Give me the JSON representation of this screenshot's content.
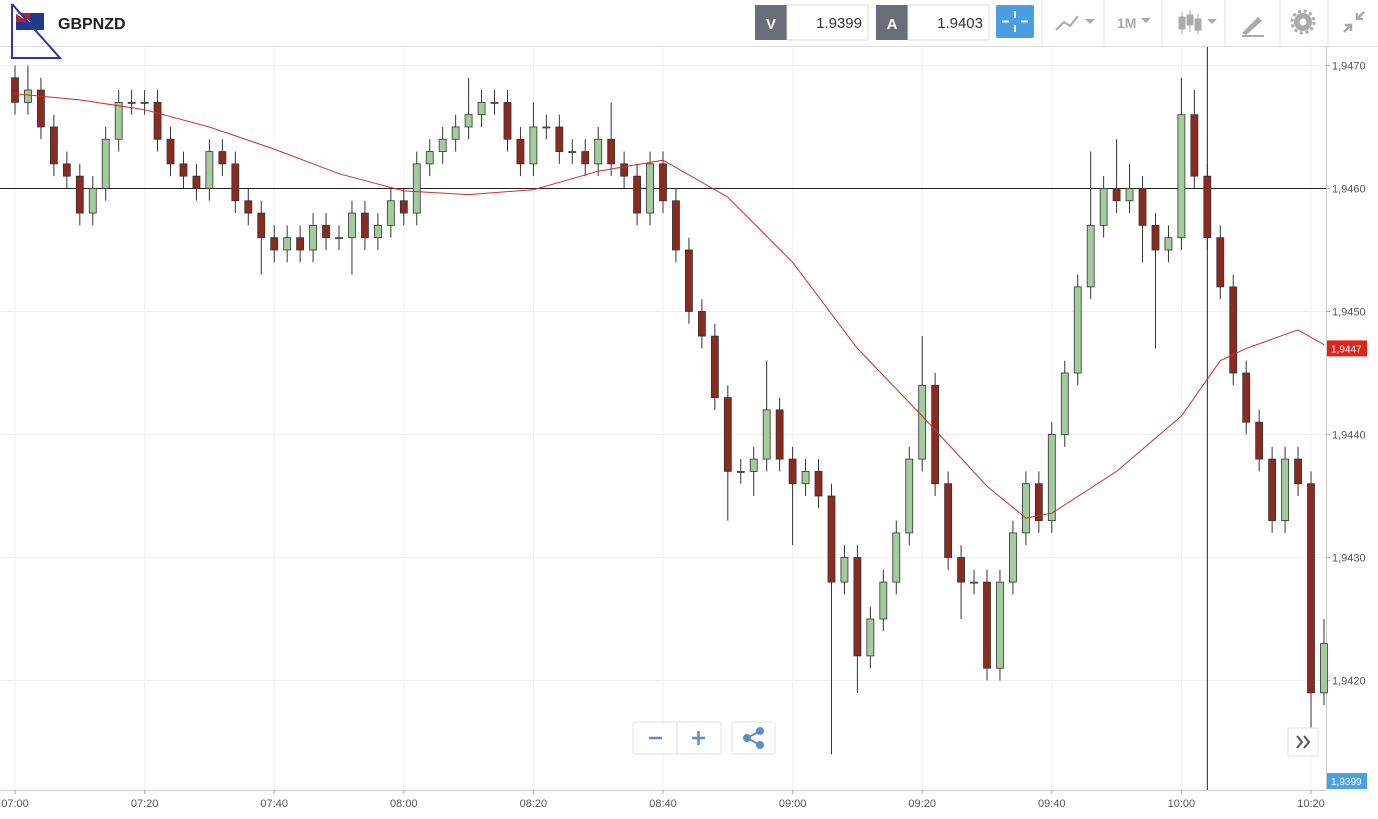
{
  "header": {
    "symbol": "GBPNZD",
    "bid_tag": "V",
    "bid": "1.9399",
    "ask_tag": "A",
    "ask": "1.9403",
    "timeframe": "1M"
  },
  "chart_data": {
    "type": "candlestick",
    "x": [
      "07:00",
      "07:02",
      "07:04",
      "07:06",
      "07:08",
      "07:10",
      "07:12",
      "07:14",
      "07:16",
      "07:18",
      "07:20",
      "07:22",
      "07:24",
      "07:26",
      "07:28",
      "07:30",
      "07:32",
      "07:34",
      "07:36",
      "07:38",
      "07:40",
      "07:42",
      "07:44",
      "07:46",
      "07:48",
      "07:50",
      "07:52",
      "07:54",
      "07:56",
      "07:58",
      "08:00",
      "08:02",
      "08:04",
      "08:06",
      "08:08",
      "08:10",
      "08:12",
      "08:14",
      "08:16",
      "08:18",
      "08:20",
      "08:22",
      "08:24",
      "08:26",
      "08:28",
      "08:30",
      "08:32",
      "08:34",
      "08:36",
      "08:38",
      "08:40",
      "08:42",
      "08:44",
      "08:46",
      "08:48",
      "08:50",
      "08:52",
      "08:54",
      "08:56",
      "08:58",
      "09:00",
      "09:02",
      "09:04",
      "09:06",
      "09:08",
      "09:10",
      "09:12",
      "09:14",
      "09:16",
      "09:18",
      "09:20",
      "09:22",
      "09:24",
      "09:26",
      "09:28",
      "09:30",
      "09:32",
      "09:34",
      "09:36",
      "09:38",
      "09:40",
      "09:42",
      "09:44",
      "09:46",
      "09:48",
      "09:50",
      "09:52",
      "09:54",
      "09:56",
      "09:58",
      "10:00",
      "10:02",
      "10:04",
      "10:06",
      "10:08",
      "10:10",
      "10:12",
      "10:14",
      "10:16",
      "10:18",
      "10:20",
      "10:22"
    ],
    "open": [
      1.9469,
      1.9467,
      1.9468,
      1.9465,
      1.9462,
      1.9461,
      1.9458,
      1.946,
      1.9464,
      1.9467,
      1.9467,
      1.9467,
      1.9464,
      1.9462,
      1.9461,
      1.946,
      1.9463,
      1.9462,
      1.9459,
      1.9458,
      1.9456,
      1.9455,
      1.9456,
      1.9455,
      1.9457,
      1.9456,
      1.9456,
      1.9458,
      1.9456,
      1.9457,
      1.9459,
      1.9458,
      1.9462,
      1.9463,
      1.9464,
      1.9465,
      1.9466,
      1.9467,
      1.9467,
      1.9464,
      1.9462,
      1.9465,
      1.9465,
      1.9463,
      1.9463,
      1.9462,
      1.9464,
      1.9462,
      1.9461,
      1.9458,
      1.9462,
      1.9459,
      1.9455,
      1.945,
      1.9448,
      1.9443,
      1.9437,
      1.9437,
      1.9438,
      1.9442,
      1.9438,
      1.9436,
      1.9437,
      1.9435,
      1.9428,
      1.943,
      1.9422,
      1.9425,
      1.9428,
      1.9432,
      1.9438,
      1.9444,
      1.9436,
      1.943,
      1.9428,
      1.9428,
      1.9421,
      1.9428,
      1.9432,
      1.9436,
      1.9433,
      1.944,
      1.9445,
      1.9452,
      1.9457,
      1.946,
      1.9459,
      1.946,
      1.9457,
      1.9455,
      1.9456,
      1.9466,
      1.9461,
      1.9456,
      1.9452,
      1.9445,
      1.9441,
      1.9438,
      1.9433,
      1.9438,
      1.9436,
      1.9419
    ],
    "high": [
      1.947,
      1.947,
      1.9469,
      1.9466,
      1.9463,
      1.9462,
      1.9461,
      1.9465,
      1.9468,
      1.9468,
      1.9468,
      1.9468,
      1.9465,
      1.9463,
      1.9462,
      1.9464,
      1.9464,
      1.9463,
      1.946,
      1.9459,
      1.9457,
      1.9457,
      1.9457,
      1.9458,
      1.9458,
      1.9457,
      1.9459,
      1.9459,
      1.9458,
      1.946,
      1.946,
      1.9463,
      1.9464,
      1.9465,
      1.9466,
      1.9469,
      1.9468,
      1.9468,
      1.9468,
      1.9465,
      1.9467,
      1.9466,
      1.9466,
      1.9464,
      1.9464,
      1.9465,
      1.9467,
      1.9463,
      1.9462,
      1.9463,
      1.9463,
      1.946,
      1.9456,
      1.9451,
      1.9449,
      1.9444,
      1.9438,
      1.9439,
      1.9446,
      1.9443,
      1.9439,
      1.9438,
      1.9438,
      1.9436,
      1.9431,
      1.9431,
      1.9426,
      1.9429,
      1.9433,
      1.9439,
      1.9448,
      1.9445,
      1.9437,
      1.9431,
      1.9429,
      1.9429,
      1.9429,
      1.9433,
      1.9437,
      1.9437,
      1.9441,
      1.9446,
      1.9453,
      1.9463,
      1.9461,
      1.9464,
      1.9462,
      1.9461,
      1.9458,
      1.9457,
      1.9469,
      1.9468,
      1.9462,
      1.9457,
      1.9453,
      1.9446,
      1.9442,
      1.9439,
      1.9439,
      1.9439,
      1.9437,
      1.9425
    ],
    "low": [
      1.9466,
      1.9466,
      1.9464,
      1.9461,
      1.946,
      1.9457,
      1.9457,
      1.9459,
      1.9463,
      1.9466,
      1.9466,
      1.9463,
      1.9461,
      1.946,
      1.9459,
      1.9459,
      1.9461,
      1.9458,
      1.9457,
      1.9453,
      1.9454,
      1.9454,
      1.9454,
      1.9454,
      1.9455,
      1.9455,
      1.9453,
      1.9455,
      1.9455,
      1.9456,
      1.9457,
      1.9457,
      1.9461,
      1.9462,
      1.9463,
      1.9464,
      1.9465,
      1.9466,
      1.9463,
      1.9461,
      1.9461,
      1.9464,
      1.9462,
      1.9462,
      1.9461,
      1.9461,
      1.9461,
      1.946,
      1.9457,
      1.9457,
      1.9458,
      1.9454,
      1.9449,
      1.9447,
      1.9442,
      1.9433,
      1.9436,
      1.9435,
      1.9437,
      1.9437,
      1.9431,
      1.9435,
      1.9434,
      1.9414,
      1.9427,
      1.9419,
      1.9421,
      1.9424,
      1.9427,
      1.9431,
      1.9437,
      1.9435,
      1.9429,
      1.9425,
      1.9427,
      1.942,
      1.942,
      1.9427,
      1.9431,
      1.9432,
      1.9432,
      1.9439,
      1.9444,
      1.9451,
      1.9456,
      1.9458,
      1.9458,
      1.9454,
      1.9447,
      1.9454,
      1.9455,
      1.946,
      1.9455,
      1.9451,
      1.9444,
      1.944,
      1.9437,
      1.9432,
      1.9432,
      1.9435,
      1.9416,
      1.9418
    ],
    "close": [
      1.9467,
      1.9468,
      1.9465,
      1.9462,
      1.9461,
      1.9458,
      1.946,
      1.9464,
      1.9467,
      1.9467,
      1.9467,
      1.9464,
      1.9462,
      1.9461,
      1.946,
      1.9463,
      1.9462,
      1.9459,
      1.9458,
      1.9456,
      1.9455,
      1.9456,
      1.9455,
      1.9457,
      1.9456,
      1.9456,
      1.9458,
      1.9456,
      1.9457,
      1.9459,
      1.9458,
      1.9462,
      1.9463,
      1.9464,
      1.9465,
      1.9466,
      1.9467,
      1.9467,
      1.9464,
      1.9462,
      1.9465,
      1.9465,
      1.9463,
      1.9463,
      1.9462,
      1.9464,
      1.9462,
      1.9461,
      1.9458,
      1.9462,
      1.9459,
      1.9455,
      1.945,
      1.9448,
      1.9443,
      1.9437,
      1.9437,
      1.9438,
      1.9442,
      1.9438,
      1.9436,
      1.9437,
      1.9435,
      1.9428,
      1.943,
      1.9422,
      1.9425,
      1.9428,
      1.9432,
      1.9438,
      1.9444,
      1.9436,
      1.943,
      1.9428,
      1.9428,
      1.9421,
      1.9428,
      1.9432,
      1.9436,
      1.9433,
      1.944,
      1.9445,
      1.9452,
      1.9457,
      1.946,
      1.9459,
      1.946,
      1.9457,
      1.9455,
      1.9456,
      1.9466,
      1.9461,
      1.9456,
      1.9452,
      1.9445,
      1.9441,
      1.9438,
      1.9433,
      1.9438,
      1.9436,
      1.9419,
      1.9423
    ],
    "up_color": "#a3cc9c",
    "down_color": "#8b2b20",
    "moving_average": {
      "color": "#d0302a",
      "x": [
        "07:00",
        "07:10",
        "07:20",
        "07:30",
        "07:40",
        "07:50",
        "08:00",
        "08:10",
        "08:20",
        "08:30",
        "08:40",
        "08:50",
        "09:00",
        "09:10",
        "09:20",
        "09:30",
        "09:36",
        "09:40",
        "09:50",
        "10:00",
        "10:06",
        "10:10",
        "10:18",
        "10:22"
      ],
      "values": [
        1.94677,
        1.94672,
        1.94664,
        1.9465,
        1.94632,
        1.94612,
        1.94598,
        1.94595,
        1.94599,
        1.94614,
        1.94623,
        1.94593,
        1.9454,
        1.9447,
        1.94415,
        1.94358,
        1.94332,
        1.94336,
        1.9437,
        1.94415,
        1.9446,
        1.9447,
        1.94485,
        1.94473
      ]
    },
    "last_price": {
      "value": 1.9447,
      "label": "1,9447"
    },
    "bid_marker": "1,9399",
    "hline": 1.946,
    "vline": "10:04",
    "ylim": [
      1.94111,
      1.94715
    ],
    "yticks": [
      {
        "value": 1.942,
        "label": "1,9420"
      },
      {
        "value": 1.943,
        "label": "1,9430"
      },
      {
        "value": 1.944,
        "label": "1,9440"
      },
      {
        "value": 1.945,
        "label": "1,9450"
      },
      {
        "value": 1.946,
        "label": "1,9460"
      },
      {
        "value": 1.947,
        "label": "1,9470"
      }
    ],
    "xticks": [
      "07:00",
      "07:20",
      "07:40",
      "08:00",
      "08:20",
      "08:40",
      "09:00",
      "09:20",
      "09:40",
      "10:00",
      "10:20"
    ],
    "grid": true
  }
}
